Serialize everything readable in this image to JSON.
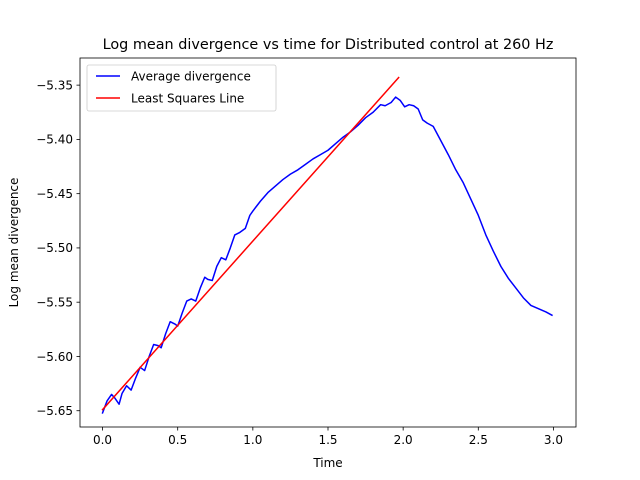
{
  "chart_data": {
    "type": "line",
    "title": "Log mean divergence vs time for Distributed control at 260 Hz",
    "xlabel": "Time",
    "ylabel": "Log mean divergence",
    "xlim": [
      -0.15,
      3.15
    ],
    "ylim": [
      -5.665,
      -5.325
    ],
    "xticks": [
      0.0,
      0.5,
      1.0,
      1.5,
      2.0,
      2.5,
      3.0
    ],
    "xtick_labels": [
      "0.0",
      "0.5",
      "1.0",
      "1.5",
      "2.0",
      "2.5",
      "3.0"
    ],
    "yticks": [
      -5.65,
      -5.6,
      -5.55,
      -5.5,
      -5.45,
      -5.4,
      -5.35
    ],
    "ytick_labels": [
      "−5.65",
      "−5.60",
      "−5.55",
      "−5.50",
      "−5.45",
      "−5.40",
      "−5.35"
    ],
    "grid": false,
    "legend_position": "top-left",
    "series": [
      {
        "name": "Average divergence",
        "color": "#0000ff",
        "x": [
          0.0,
          0.03,
          0.06,
          0.08,
          0.11,
          0.13,
          0.16,
          0.19,
          0.22,
          0.25,
          0.28,
          0.31,
          0.34,
          0.37,
          0.39,
          0.42,
          0.45,
          0.48,
          0.5,
          0.53,
          0.56,
          0.59,
          0.62,
          0.65,
          0.68,
          0.7,
          0.73,
          0.76,
          0.79,
          0.82,
          0.85,
          0.88,
          0.91,
          0.95,
          0.98,
          1.0,
          1.05,
          1.1,
          1.15,
          1.2,
          1.25,
          1.3,
          1.35,
          1.4,
          1.45,
          1.5,
          1.55,
          1.6,
          1.65,
          1.7,
          1.75,
          1.8,
          1.85,
          1.88,
          1.92,
          1.95,
          1.98,
          2.01,
          2.04,
          2.07,
          2.1,
          2.13,
          2.16,
          2.2,
          2.25,
          2.3,
          2.35,
          2.4,
          2.45,
          2.5,
          2.55,
          2.6,
          2.65,
          2.7,
          2.75,
          2.8,
          2.85,
          2.9,
          2.95,
          2.99
        ],
        "y": [
          -5.652,
          -5.641,
          -5.635,
          -5.638,
          -5.644,
          -5.634,
          -5.627,
          -5.631,
          -5.62,
          -5.61,
          -5.613,
          -5.6,
          -5.589,
          -5.59,
          -5.592,
          -5.579,
          -5.568,
          -5.57,
          -5.572,
          -5.56,
          -5.549,
          -5.547,
          -5.549,
          -5.537,
          -5.527,
          -5.529,
          -5.53,
          -5.517,
          -5.509,
          -5.511,
          -5.5,
          -5.488,
          -5.486,
          -5.482,
          -5.47,
          -5.466,
          -5.457,
          -5.449,
          -5.443,
          -5.437,
          -5.432,
          -5.428,
          -5.423,
          -5.418,
          -5.414,
          -5.41,
          -5.404,
          -5.398,
          -5.393,
          -5.387,
          -5.38,
          -5.375,
          -5.368,
          -5.369,
          -5.366,
          -5.361,
          -5.364,
          -5.37,
          -5.368,
          -5.369,
          -5.372,
          -5.382,
          -5.385,
          -5.388,
          -5.401,
          -5.414,
          -5.428,
          -5.44,
          -5.455,
          -5.47,
          -5.488,
          -5.503,
          -5.517,
          -5.528,
          -5.537,
          -5.546,
          -5.553,
          -5.556,
          -5.559,
          -5.562
        ]
      },
      {
        "name": "Least Squares Line",
        "color": "#ff0000",
        "x": [
          0.0,
          1.97
        ],
        "y": [
          -5.649,
          -5.343
        ]
      }
    ]
  }
}
